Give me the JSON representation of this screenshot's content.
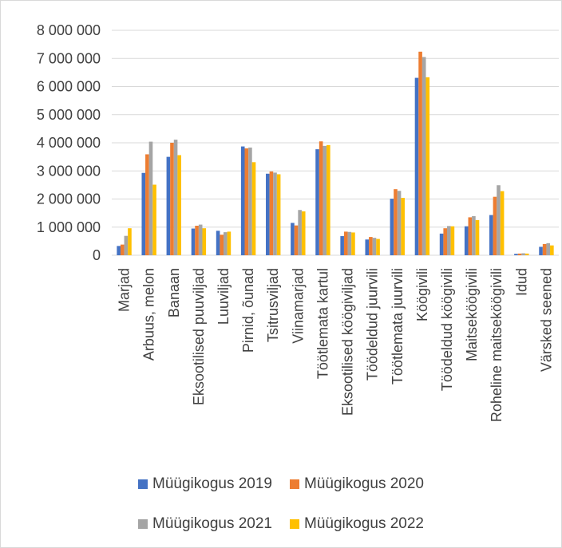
{
  "chart_data": {
    "type": "bar",
    "categories": [
      "Marjad",
      "Arbuus, melon",
      "Banaan",
      "Eksootilised puuviljad",
      "Luuviljad",
      "Pirnid, õunad",
      "Tsitrusviljad",
      "Viinamarjad",
      "Töötlemata kartul",
      "Eksootilised köögiviljad",
      "Töödeldud juurvili",
      "Töötlemata juurvili",
      "Köögivili",
      "Töödeldud köögivili",
      "Maitseköögivili",
      "Roheline maitseköögivili",
      "Idud",
      "Värsked seened"
    ],
    "series": [
      {
        "name": "Müügikogus 2019",
        "color": "#4472C4",
        "values": [
          330000,
          2930000,
          3500000,
          950000,
          870000,
          3870000,
          2900000,
          1150000,
          3770000,
          680000,
          560000,
          2010000,
          6310000,
          770000,
          1030000,
          1430000,
          50000,
          300000
        ]
      },
      {
        "name": "Müügikogus 2020",
        "color": "#ED7D31",
        "values": [
          380000,
          3590000,
          4000000,
          1050000,
          730000,
          3800000,
          2980000,
          1060000,
          4050000,
          840000,
          650000,
          2350000,
          7240000,
          960000,
          1350000,
          2080000,
          60000,
          400000
        ]
      },
      {
        "name": "Müügikogus 2021",
        "color": "#A5A5A5",
        "values": [
          690000,
          4040000,
          4110000,
          1090000,
          820000,
          3830000,
          2940000,
          1610000,
          3890000,
          830000,
          620000,
          2290000,
          7050000,
          1040000,
          1390000,
          2490000,
          70000,
          430000
        ]
      },
      {
        "name": "Müügikogus 2022",
        "color": "#FFC000",
        "values": [
          960000,
          2510000,
          3560000,
          960000,
          840000,
          3310000,
          2880000,
          1560000,
          3920000,
          810000,
          580000,
          2040000,
          6330000,
          1030000,
          1250000,
          2280000,
          60000,
          350000
        ]
      }
    ],
    "ylim": [
      0,
      8000000
    ],
    "yticks": [
      0,
      1000000,
      2000000,
      3000000,
      4000000,
      5000000,
      6000000,
      7000000,
      8000000
    ],
    "ytick_labels": [
      "0",
      "1 000 000",
      "2 000 000",
      "3 000 000",
      "4 000 000",
      "5 000 000",
      "6 000 000",
      "7 000 000",
      "8 000 000"
    ],
    "grid": "horizontal",
    "legend_placement": "bottom"
  }
}
